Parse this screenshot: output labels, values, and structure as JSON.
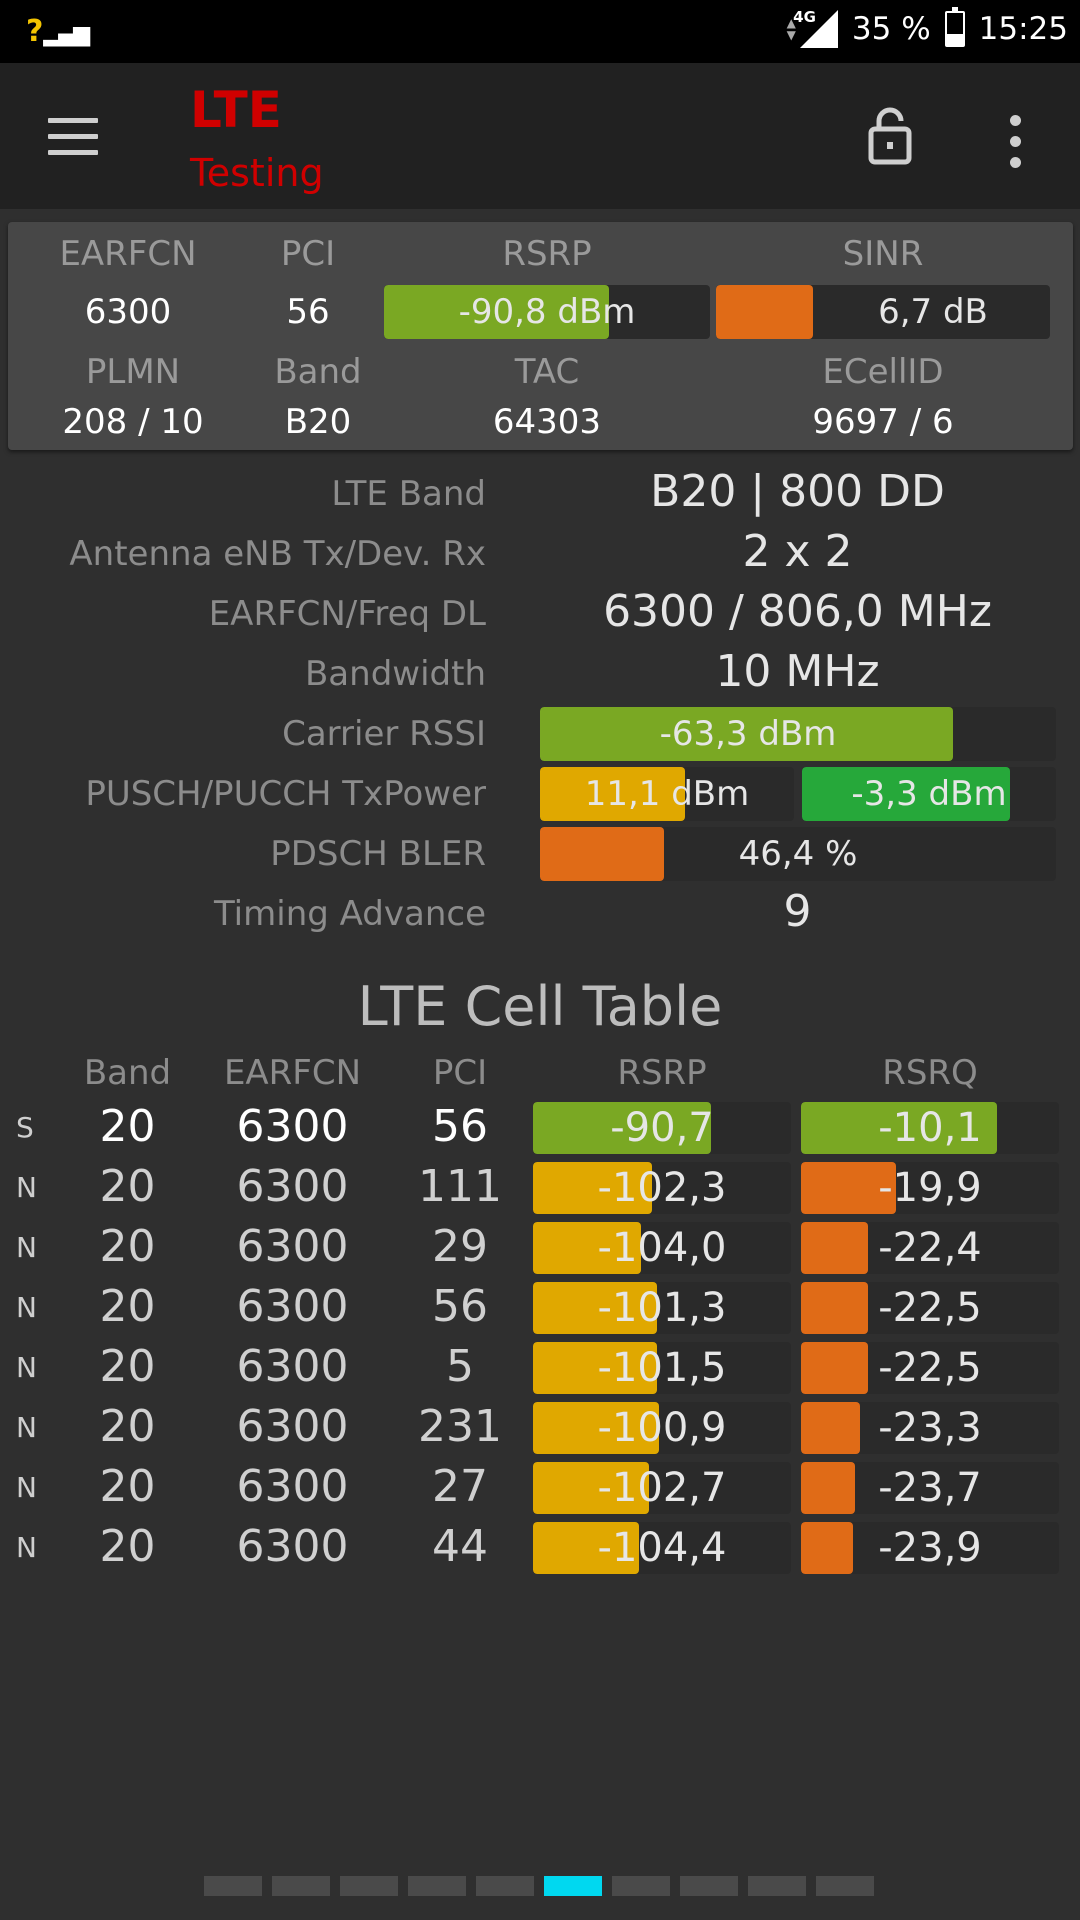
{
  "status_bar": {
    "signal_left_mark": "?",
    "network": "4G",
    "battery": "35 %",
    "time": "15:25"
  },
  "app": {
    "title": "LTE",
    "subtitle": "Testing"
  },
  "summary": {
    "earfcn_label": "EARFCN",
    "earfcn": "6300",
    "pci_label": "PCI",
    "pci": "56",
    "rsrp_label": "RSRP",
    "rsrp": "-90,8 dBm",
    "rsrp_fill": 0.69,
    "sinr_label": "SINR",
    "sinr": "6,7 dB",
    "sinr_fill": 0.29,
    "plmn_label": "PLMN",
    "plmn": "208 / 10",
    "band_label": "Band",
    "band": "B20",
    "tac_label": "TAC",
    "tac": "64303",
    "ecellid_label": "ECellID",
    "ecellid": "9697 / 6"
  },
  "info": {
    "lte_band_label": "LTE Band",
    "lte_band": "B20 | 800 DD",
    "antenna_label": "Antenna eNB Tx/Dev. Rx",
    "antenna": "2 x 2",
    "earfcn_freq_label": "EARFCN/Freq DL",
    "earfcn_freq": "6300 / 806,0 MHz",
    "bandwidth_label": "Bandwidth",
    "bandwidth": "10 MHz",
    "rssi_label": "Carrier RSSI",
    "rssi": "-63,3 dBm",
    "rssi_fill": 0.8,
    "txpower_label": "PUSCH/PUCCH TxPower",
    "pusch": "11,1 dBm",
    "pusch_fill": 0.57,
    "pucch": "-3,3 dBm",
    "pucch_fill": 0.82,
    "bler_label": "PDSCH BLER",
    "bler": "46,4 %",
    "bler_fill": 0.24,
    "ta_label": "Timing Advance",
    "ta": "9"
  },
  "cell_table": {
    "title": "LTE Cell Table",
    "headers": [
      "Band",
      "EARFCN",
      "PCI",
      "RSRP",
      "RSRQ"
    ],
    "rows": [
      {
        "type": "S",
        "band": "20",
        "earfcn": "6300",
        "pci": "56",
        "rsrp": "-90,7",
        "rsrp_fill": 0.69,
        "rsrp_color": "#7aa823",
        "rsrq": "-10,1",
        "rsrq_fill": 0.76,
        "rsrq_color": "#7aa823"
      },
      {
        "type": "N",
        "band": "20",
        "earfcn": "6300",
        "pci": "111",
        "rsrp": "-102,3",
        "rsrp_fill": 0.46,
        "rsrp_color": "#e0a800",
        "rsrq": "-19,9",
        "rsrq_fill": 0.37,
        "rsrq_color": "#e06b17"
      },
      {
        "type": "N",
        "band": "20",
        "earfcn": "6300",
        "pci": "29",
        "rsrp": "-104,0",
        "rsrp_fill": 0.42,
        "rsrp_color": "#e0a800",
        "rsrq": "-22,4",
        "rsrq_fill": 0.26,
        "rsrq_color": "#e06b17"
      },
      {
        "type": "N",
        "band": "20",
        "earfcn": "6300",
        "pci": "56",
        "rsrp": "-101,3",
        "rsrp_fill": 0.48,
        "rsrp_color": "#e0a800",
        "rsrq": "-22,5",
        "rsrq_fill": 0.26,
        "rsrq_color": "#e06b17"
      },
      {
        "type": "N",
        "band": "20",
        "earfcn": "6300",
        "pci": "5",
        "rsrp": "-101,5",
        "rsrp_fill": 0.48,
        "rsrp_color": "#e0a800",
        "rsrq": "-22,5",
        "rsrq_fill": 0.26,
        "rsrq_color": "#e06b17"
      },
      {
        "type": "N",
        "band": "20",
        "earfcn": "6300",
        "pci": "231",
        "rsrp": "-100,9",
        "rsrp_fill": 0.49,
        "rsrp_color": "#e0a800",
        "rsrq": "-23,3",
        "rsrq_fill": 0.23,
        "rsrq_color": "#e06b17"
      },
      {
        "type": "N",
        "band": "20",
        "earfcn": "6300",
        "pci": "27",
        "rsrp": "-102,7",
        "rsrp_fill": 0.45,
        "rsrp_color": "#e0a800",
        "rsrq": "-23,7",
        "rsrq_fill": 0.21,
        "rsrq_color": "#e06b17"
      },
      {
        "type": "N",
        "band": "20",
        "earfcn": "6300",
        "pci": "44",
        "rsrp": "-104,4",
        "rsrp_fill": 0.41,
        "rsrp_color": "#e0a800",
        "rsrq": "-23,9",
        "rsrq_fill": 0.2,
        "rsrq_color": "#e06b17"
      }
    ]
  },
  "pager": {
    "count": 10,
    "active": 5
  },
  "icons": {
    "menu": "hamburger-icon",
    "lock": "lock-icon",
    "overflow": "more-vert-icon"
  }
}
